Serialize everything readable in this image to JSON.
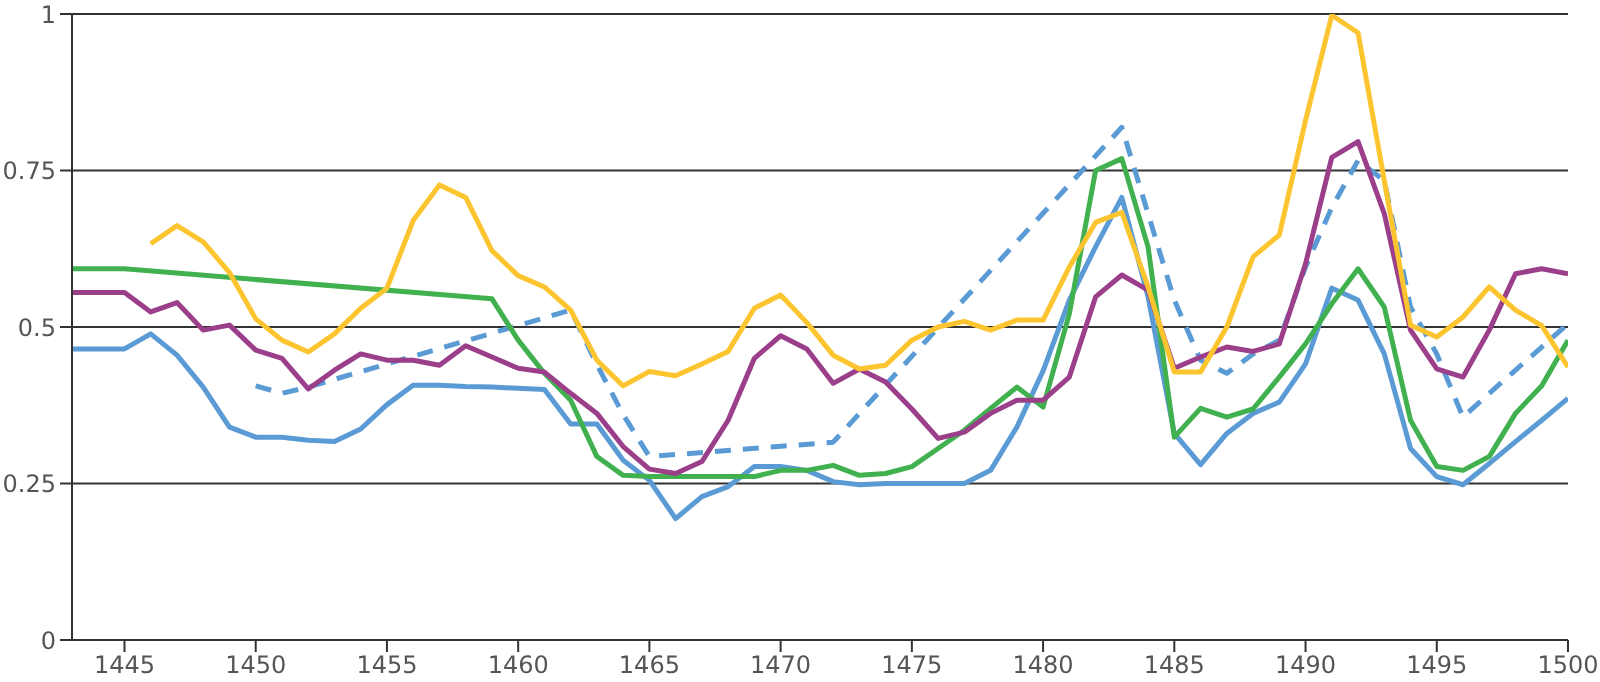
{
  "chart_data": {
    "type": "line",
    "x": [
      1443,
      1444,
      1445,
      1446,
      1447,
      1448,
      1449,
      1450,
      1451,
      1452,
      1453,
      1454,
      1455,
      1456,
      1457,
      1458,
      1459,
      1460,
      1461,
      1462,
      1463,
      1464,
      1465,
      1466,
      1467,
      1468,
      1469,
      1470,
      1471,
      1472,
      1473,
      1474,
      1475,
      1476,
      1477,
      1478,
      1479,
      1480,
      1481,
      1482,
      1483,
      1484,
      1485,
      1486,
      1487,
      1488,
      1489,
      1490,
      1491,
      1492,
      1493,
      1494,
      1495,
      1496,
      1497,
      1498,
      1499,
      1500
    ],
    "series": [
      {
        "color": "#5b9bd5",
        "values": [
          0.465,
          0.465,
          0.465,
          0.489,
          0.455,
          0.404,
          0.34,
          0.324,
          0.324,
          0.319,
          0.317,
          0.337,
          0.376,
          0.407,
          0.407,
          0.405,
          0.404,
          0.402,
          0.4,
          0.345,
          0.345,
          0.287,
          0.255,
          0.194,
          0.229,
          0.245,
          0.277,
          0.277,
          0.271,
          0.253,
          0.248,
          0.25,
          0.25,
          0.25,
          0.25,
          0.271,
          0.34,
          0.43,
          0.543,
          0.628,
          0.707,
          0.548,
          0.33,
          0.28,
          0.33,
          0.362,
          0.38,
          0.441,
          0.562,
          0.543,
          0.457,
          0.306,
          0.261,
          0.248,
          0.282,
          0.317,
          0.351,
          0.386
        ]
      },
      {
        "color": "#5b9bd5",
        "line_style": "dashed",
        "x": [
          1450,
          1451,
          1452,
          1462,
          1463,
          1464,
          1465,
          1472,
          1483,
          1484,
          1485,
          1486,
          1487,
          1488,
          1489,
          1490,
          1491,
          1492,
          1493,
          1494,
          1495,
          1496,
          1497,
          1498,
          1499,
          1500
        ],
        "values": [
          0.406,
          0.394,
          0.404,
          0.527,
          0.44,
          0.36,
          0.293,
          0.316,
          0.819,
          0.681,
          0.543,
          0.447,
          0.426,
          0.457,
          0.479,
          0.596,
          0.691,
          0.766,
          0.734,
          0.532,
          0.457,
          0.356,
          0.394,
          0.431,
          0.468,
          0.505
        ]
      },
      {
        "color": "#41b14f",
        "x": [
          1443,
          1445,
          1459,
          1460,
          1461,
          1462,
          1463,
          1464,
          1465,
          1466,
          1467,
          1468,
          1469,
          1470,
          1471,
          1472,
          1473,
          1474,
          1475,
          1476,
          1477,
          1478,
          1479,
          1480,
          1481,
          1482,
          1483,
          1484,
          1485,
          1486,
          1487,
          1488,
          1489,
          1490,
          1491,
          1492,
          1493,
          1494,
          1495,
          1496,
          1497,
          1498,
          1499,
          1500
        ],
        "values": [
          0.593,
          0.593,
          0.545,
          0.479,
          0.426,
          0.383,
          0.293,
          0.263,
          0.261,
          0.261,
          0.261,
          0.261,
          0.261,
          0.271,
          0.271,
          0.279,
          0.263,
          0.266,
          0.277,
          0.306,
          0.335,
          0.37,
          0.404,
          0.372,
          0.521,
          0.75,
          0.769,
          0.628,
          0.324,
          0.37,
          0.356,
          0.369,
          0.42,
          0.473,
          0.537,
          0.593,
          0.532,
          0.351,
          0.277,
          0.271,
          0.293,
          0.362,
          0.406,
          0.479
        ]
      },
      {
        "color": "#9b3f8b",
        "values": [
          0.555,
          0.555,
          0.555,
          0.524,
          0.539,
          0.495,
          0.503,
          0.463,
          0.45,
          0.401,
          0.431,
          0.457,
          0.447,
          0.447,
          0.439,
          0.47,
          0.452,
          0.434,
          0.428,
          0.394,
          0.362,
          0.309,
          0.273,
          0.266,
          0.285,
          0.351,
          0.45,
          0.486,
          0.465,
          0.41,
          0.433,
          0.412,
          0.369,
          0.322,
          0.332,
          0.362,
          0.383,
          0.383,
          0.42,
          0.548,
          0.583,
          0.559,
          0.434,
          0.452,
          0.468,
          0.461,
          0.473,
          0.601,
          0.771,
          0.796,
          0.681,
          0.495,
          0.433,
          0.42,
          0.495,
          0.585,
          0.593,
          0.585
        ]
      },
      {
        "color": "#fcc530",
        "values": [
          null,
          null,
          null,
          0.633,
          0.662,
          0.636,
          0.587,
          0.513,
          0.479,
          0.46,
          0.489,
          0.53,
          0.562,
          0.67,
          0.727,
          0.707,
          0.622,
          0.582,
          0.564,
          0.527,
          0.447,
          0.406,
          0.429,
          0.422,
          0.441,
          0.461,
          0.53,
          0.551,
          0.507,
          0.455,
          0.433,
          0.439,
          0.479,
          0.5,
          0.509,
          0.495,
          0.511,
          0.511,
          0.596,
          0.667,
          0.683,
          0.564,
          0.428,
          0.428,
          0.5,
          0.612,
          0.647,
          0.83,
          0.998,
          0.97,
          0.734,
          0.503,
          0.484,
          0.516,
          0.564,
          0.527,
          0.502,
          0.436
        ]
      }
    ],
    "xlim": [
      1443,
      1500
    ],
    "xticks": [
      1445,
      1450,
      1455,
      1460,
      1465,
      1470,
      1475,
      1480,
      1485,
      1490,
      1495,
      1500
    ],
    "ylim": [
      0,
      1
    ],
    "yticks": [
      0,
      0.25,
      0.5,
      0.75,
      1
    ],
    "grid": "y",
    "marker": "none",
    "line_style": "solid"
  }
}
